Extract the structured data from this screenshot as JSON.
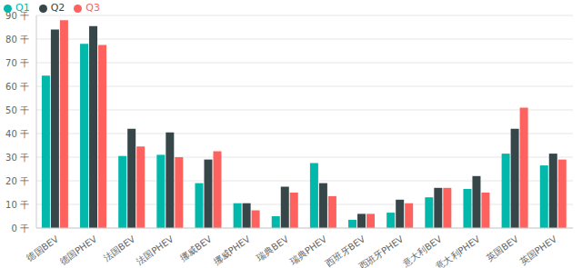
{
  "chart_data": {
    "type": "bar",
    "categories": [
      "德国BEV",
      "德国PHEV",
      "法国BEV",
      "法国PHEV",
      "挪威BEV",
      "挪威PHEV",
      "瑞典BEV",
      "瑞典PHEV",
      "西班牙BEV",
      "西班牙PHEV",
      "意大利BEV",
      "意大利PHEV",
      "英国BEV",
      "英国PHEV"
    ],
    "series": [
      {
        "name": "Q1",
        "color": "#01B8AA",
        "values": [
          64.5,
          78,
          30.5,
          31,
          19,
          10.5,
          5,
          27.5,
          3.5,
          6.5,
          13,
          16.5,
          31.5,
          26.5
        ]
      },
      {
        "name": "Q2",
        "color": "#374649",
        "values": [
          84,
          85.5,
          42,
          40.5,
          29,
          10.5,
          17.5,
          19,
          6,
          12,
          17,
          22,
          42,
          31.5
        ]
      },
      {
        "name": "Q3",
        "color": "#FD625E",
        "values": [
          88,
          77.5,
          34.5,
          30,
          32.5,
          7.5,
          15,
          13.5,
          6,
          10.5,
          17,
          15,
          51,
          29
        ]
      }
    ],
    "ylim": [
      0,
      90
    ],
    "yticks": [
      {
        "value": 0,
        "label": "0 千"
      },
      {
        "value": 10,
        "label": "10 千"
      },
      {
        "value": 20,
        "label": "20 千"
      },
      {
        "value": 30,
        "label": "30 千"
      },
      {
        "value": 40,
        "label": "40 千"
      },
      {
        "value": 50,
        "label": "50 千"
      },
      {
        "value": 60,
        "label": "60 千"
      },
      {
        "value": 70,
        "label": "70 千"
      },
      {
        "value": 80,
        "label": "80 千"
      },
      {
        "value": 90,
        "label": "90 千"
      }
    ],
    "grid": true,
    "legend": "top-left"
  }
}
